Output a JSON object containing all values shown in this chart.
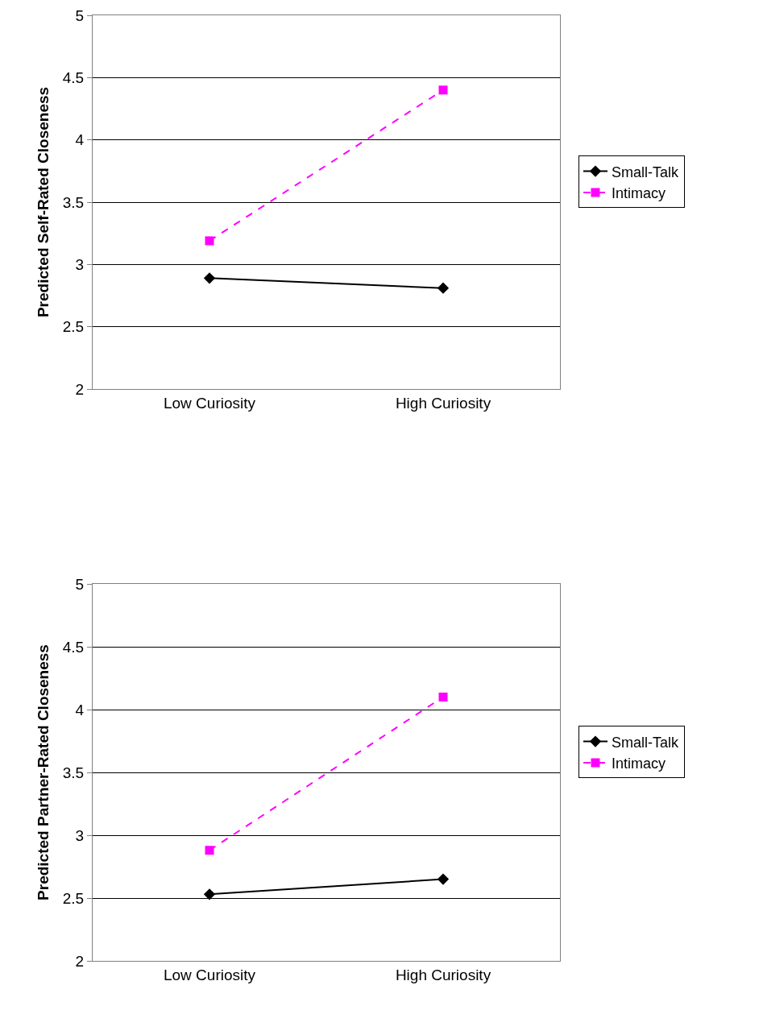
{
  "chart_data": [
    {
      "type": "line",
      "ylabel": "Predicted Self-Rated Closeness",
      "categories": [
        "Low Curiosity",
        "High Curiosity"
      ],
      "series": [
        {
          "name": "Small-Talk",
          "color": "#000000",
          "values": [
            2.89,
            2.81
          ],
          "marker": "diamond",
          "line_style": "solid"
        },
        {
          "name": "Intimacy",
          "color": "#ff00ff",
          "values": [
            3.19,
            4.4
          ],
          "marker": "square",
          "line_style": "dashed"
        }
      ],
      "ylim": [
        2,
        5
      ],
      "yticks": [
        2,
        2.5,
        3,
        3.5,
        4,
        4.5,
        5
      ],
      "grid": "y",
      "legend": "right"
    },
    {
      "type": "line",
      "ylabel": "Predicted Partner-Rated Closeness",
      "categories": [
        "Low Curiosity",
        "High Curiosity"
      ],
      "series": [
        {
          "name": "Small-Talk",
          "color": "#000000",
          "values": [
            2.53,
            2.65
          ],
          "marker": "diamond",
          "line_style": "solid"
        },
        {
          "name": "Intimacy",
          "color": "#ff00ff",
          "values": [
            2.88,
            4.1
          ],
          "marker": "square",
          "line_style": "dashed"
        }
      ],
      "ylim": [
        2,
        5
      ],
      "yticks": [
        2,
        2.5,
        3,
        3.5,
        4,
        4.5,
        5
      ],
      "grid": "y",
      "legend": "right"
    }
  ]
}
